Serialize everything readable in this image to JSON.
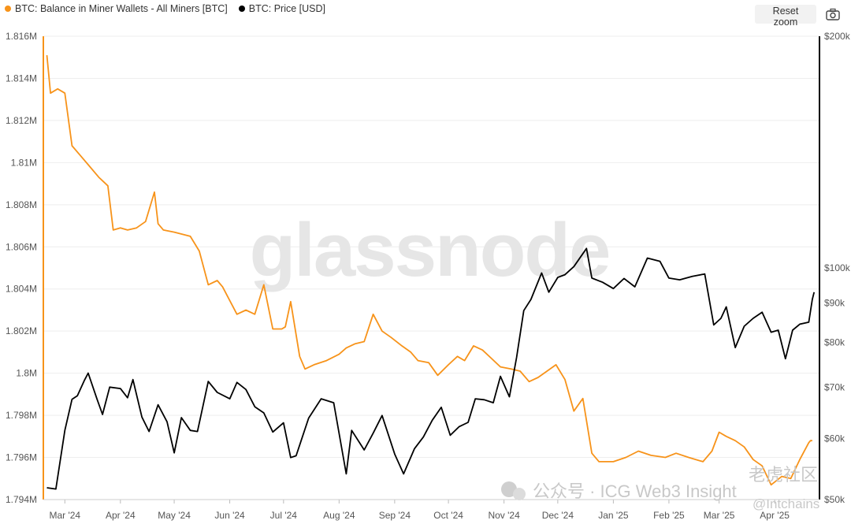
{
  "legend": {
    "series1": "BTC: Balance in Miner Wallets - All Miners [BTC]",
    "series2": "BTC: Price [USD]"
  },
  "toolbar": {
    "reset_zoom": "Reset zoom",
    "camera_icon": "camera-icon"
  },
  "watermark": {
    "brand": "glassnode",
    "wechat": "公众号 · ICG Web3 Insight",
    "corner": "老虎社区",
    "corner2": "@Intchains"
  },
  "colors": {
    "balance": "#F7931A",
    "price": "#000000",
    "grid": "#eeeeee"
  },
  "chart_data": {
    "type": "line",
    "x_labels": [
      "Mar '24",
      "Apr '24",
      "May '24",
      "Jun '24",
      "Jul '24",
      "Aug '24",
      "Sep '24",
      "Oct '24",
      "Nov '24",
      "Dec '24",
      "Jan '25",
      "Feb '25",
      "Mar '25",
      "Apr '25"
    ],
    "y_left": {
      "min": 1794000,
      "max": 1816000,
      "ticks": [
        "1.794M",
        "1.796M",
        "1.798M",
        "1.8M",
        "1.802M",
        "1.804M",
        "1.806M",
        "1.808M",
        "1.81M",
        "1.812M",
        "1.814M",
        "1.816M"
      ]
    },
    "y_right": {
      "scale": "log",
      "min": 50000,
      "max": 200000,
      "ticks": [
        [
          "$50k",
          50000
        ],
        [
          "$60k",
          60000
        ],
        [
          "$70k",
          70000
        ],
        [
          "$80k",
          80000
        ],
        [
          "$90k",
          90000
        ],
        [
          "$100k",
          100000
        ],
        [
          "$200k",
          200000
        ]
      ]
    },
    "series": [
      {
        "name": "BTC: Balance in Miner Wallets - All Miners [BTC]",
        "axis": "left",
        "dates": [
          "2024-02-20",
          "2024-02-22",
          "2024-02-26",
          "2024-03-01",
          "2024-03-05",
          "2024-03-10",
          "2024-03-14",
          "2024-03-20",
          "2024-03-25",
          "2024-03-28",
          "2024-04-01",
          "2024-04-05",
          "2024-04-10",
          "2024-04-15",
          "2024-04-20",
          "2024-04-22",
          "2024-04-25",
          "2024-05-01",
          "2024-05-10",
          "2024-05-15",
          "2024-05-20",
          "2024-05-25",
          "2024-05-28",
          "2024-06-05",
          "2024-06-10",
          "2024-06-15",
          "2024-06-20",
          "2024-06-25",
          "2024-06-30",
          "2024-07-02",
          "2024-07-05",
          "2024-07-10",
          "2024-07-13",
          "2024-07-18",
          "2024-07-25",
          "2024-08-01",
          "2024-08-05",
          "2024-08-10",
          "2024-08-15",
          "2024-08-20",
          "2024-08-25",
          "2024-08-30",
          "2024-09-05",
          "2024-09-10",
          "2024-09-14",
          "2024-09-20",
          "2024-09-25",
          "2024-10-01",
          "2024-10-06",
          "2024-10-10",
          "2024-10-15",
          "2024-10-20",
          "2024-10-25",
          "2024-10-30",
          "2024-11-05",
          "2024-11-10",
          "2024-11-15",
          "2024-11-20",
          "2024-11-25",
          "2024-11-30",
          "2024-12-05",
          "2024-12-10",
          "2024-12-15",
          "2024-12-20",
          "2024-12-24",
          "2025-01-01",
          "2025-01-08",
          "2025-01-15",
          "2025-01-22",
          "2025-01-30",
          "2025-02-05",
          "2025-02-12",
          "2025-02-20",
          "2025-02-25",
          "2025-03-01",
          "2025-03-05",
          "2025-03-10",
          "2025-03-15",
          "2025-03-20",
          "2025-03-25",
          "2025-03-30",
          "2025-04-05",
          "2025-04-10",
          "2025-04-15",
          "2025-04-20",
          "2025-04-21",
          "2025-04-22"
        ],
        "values": [
          1815.1,
          1813.3,
          1813.5,
          1813.3,
          1810.8,
          1810.3,
          1809.9,
          1809.3,
          1808.9,
          1806.8,
          1806.9,
          1806.8,
          1806.9,
          1807.2,
          1808.6,
          1807.1,
          1806.8,
          1806.7,
          1806.5,
          1805.8,
          1804.2,
          1804.4,
          1804.1,
          1802.8,
          1803.0,
          1802.8,
          1804.2,
          1802.1,
          1802.1,
          1802.2,
          1803.4,
          1800.8,
          1800.2,
          1800.4,
          1800.6,
          1800.9,
          1801.2,
          1801.4,
          1801.5,
          1802.8,
          1802.0,
          1801.7,
          1801.3,
          1801.0,
          1800.6,
          1800.5,
          1799.9,
          1800.4,
          1800.8,
          1800.6,
          1801.3,
          1801.1,
          1800.7,
          1800.3,
          1800.2,
          1800.1,
          1799.6,
          1799.8,
          1800.1,
          1800.4,
          1799.7,
          1798.2,
          1798.8,
          1796.2,
          1795.8,
          1795.8,
          1796.0,
          1796.3,
          1796.1,
          1796.0,
          1796.2,
          1796.0,
          1795.8,
          1796.3,
          1797.2,
          1797.0,
          1796.8,
          1796.5,
          1795.9,
          1795.6,
          1794.7,
          1795.1,
          1795.0,
          1795.9,
          1796.7,
          1796.8,
          1796.8
        ]
      },
      {
        "name": "BTC: Price [USD]",
        "axis": "right",
        "dates": [
          "2024-02-20",
          "2024-02-25",
          "2024-03-01",
          "2024-03-05",
          "2024-03-08",
          "2024-03-12",
          "2024-03-14",
          "2024-03-19",
          "2024-03-22",
          "2024-03-26",
          "2024-04-01",
          "2024-04-05",
          "2024-04-08",
          "2024-04-13",
          "2024-04-17",
          "2024-04-22",
          "2024-04-27",
          "2024-05-01",
          "2024-05-05",
          "2024-05-10",
          "2024-05-14",
          "2024-05-20",
          "2024-05-25",
          "2024-06-01",
          "2024-06-05",
          "2024-06-10",
          "2024-06-15",
          "2024-06-20",
          "2024-06-25",
          "2024-07-01",
          "2024-07-05",
          "2024-07-08",
          "2024-07-15",
          "2024-07-22",
          "2024-07-29",
          "2024-08-05",
          "2024-08-08",
          "2024-08-15",
          "2024-08-20",
          "2024-08-25",
          "2024-09-01",
          "2024-09-06",
          "2024-09-12",
          "2024-09-17",
          "2024-09-22",
          "2024-09-27",
          "2024-10-02",
          "2024-10-07",
          "2024-10-12",
          "2024-10-16",
          "2024-10-21",
          "2024-10-26",
          "2024-10-30",
          "2024-11-04",
          "2024-11-08",
          "2024-11-12",
          "2024-11-16",
          "2024-11-22",
          "2024-11-26",
          "2024-12-01",
          "2024-12-05",
          "2024-12-10",
          "2024-12-17",
          "2024-12-20",
          "2024-12-26",
          "2025-01-01",
          "2025-01-07",
          "2025-01-13",
          "2025-01-20",
          "2025-01-27",
          "2025-02-01",
          "2025-02-07",
          "2025-02-14",
          "2025-02-21",
          "2025-02-26",
          "2025-03-02",
          "2025-03-05",
          "2025-03-10",
          "2025-03-15",
          "2025-03-20",
          "2025-03-25",
          "2025-03-30",
          "2025-04-03",
          "2025-04-07",
          "2025-04-11",
          "2025-04-15",
          "2025-04-20",
          "2025-04-22",
          "2025-04-23"
        ],
        "values": [
          51800,
          51600,
          61500,
          67500,
          68200,
          71500,
          73000,
          67500,
          64500,
          70000,
          69700,
          67800,
          71600,
          64000,
          61300,
          66400,
          63100,
          57500,
          63900,
          61500,
          61300,
          71200,
          68900,
          67600,
          71000,
          69500,
          66000,
          64800,
          61200,
          62900,
          56700,
          57000,
          63800,
          67600,
          66800,
          54000,
          61500,
          58000,
          61000,
          64300,
          57300,
          54000,
          58200,
          60300,
          63400,
          65900,
          60600,
          62200,
          63000,
          67600,
          67400,
          66800,
          72300,
          68000,
          76500,
          88000,
          91000,
          98500,
          93000,
          97200,
          98000,
          100400,
          106000,
          97000,
          95800,
          94000,
          96900,
          94500,
          103000,
          102000,
          97000,
          96500,
          97500,
          98200,
          84300,
          86000,
          89000,
          78800,
          84000,
          86000,
          87600,
          82500,
          83000,
          76200,
          83000,
          84500,
          85000,
          91000,
          93000
        ]
      }
    ]
  }
}
